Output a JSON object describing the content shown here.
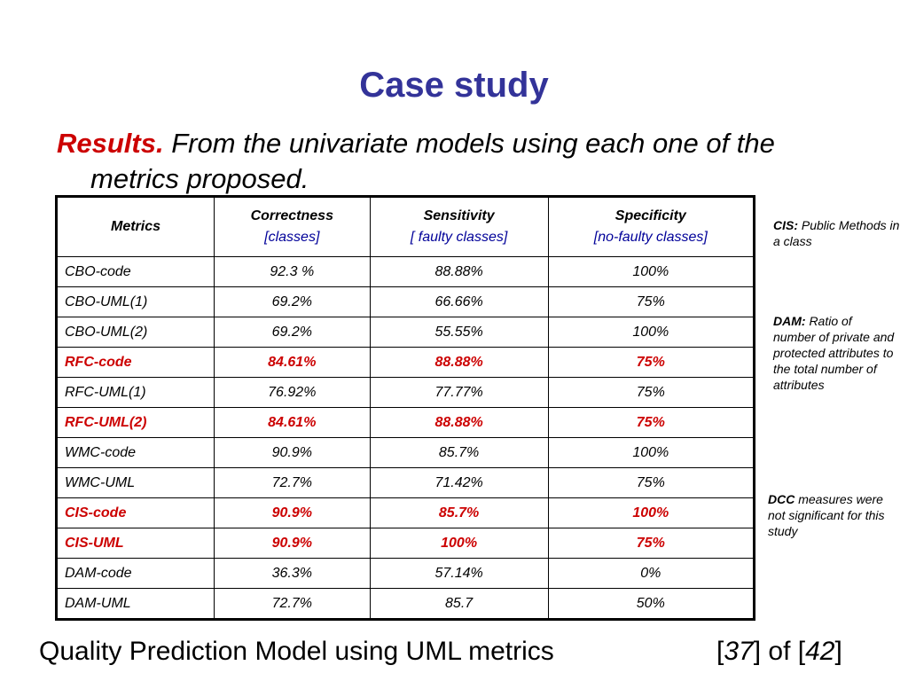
{
  "title": "Case study",
  "subtitle": {
    "lead": "Results.",
    "line1": "From the univariate models using each one of the",
    "line2": "metrics proposed."
  },
  "table": {
    "headers": [
      {
        "label": "Metrics",
        "sub": ""
      },
      {
        "label": "Correctness",
        "sub": "[classes]"
      },
      {
        "label": "Sensitivity",
        "sub": "[ faulty classes]"
      },
      {
        "label": "Specificity",
        "sub": "[no-faulty classes]"
      }
    ],
    "rows": [
      {
        "metric": "CBO-code",
        "correctness": "92.3 %",
        "sensitivity": "88.88%",
        "specificity": "100%",
        "highlight": false
      },
      {
        "metric": "CBO-UML(1)",
        "correctness": "69.2%",
        "sensitivity": "66.66%",
        "specificity": "75%",
        "highlight": false
      },
      {
        "metric": "CBO-UML(2)",
        "correctness": "69.2%",
        "sensitivity": "55.55%",
        "specificity": "100%",
        "highlight": false
      },
      {
        "metric": "RFC-code",
        "correctness": "84.61%",
        "sensitivity": "88.88%",
        "specificity": "75%",
        "highlight": true
      },
      {
        "metric": "RFC-UML(1)",
        "correctness": "76.92%",
        "sensitivity": "77.77%",
        "specificity": "75%",
        "highlight": false
      },
      {
        "metric": "RFC-UML(2)",
        "correctness": "84.61%",
        "sensitivity": "88.88%",
        "specificity": "75%",
        "highlight": true
      },
      {
        "metric": "WMC-code",
        "correctness": "90.9%",
        "sensitivity": "85.7%",
        "specificity": "100%",
        "highlight": false
      },
      {
        "metric": "WMC-UML",
        "correctness": "72.7%",
        "sensitivity": "71.42%",
        "specificity": "75%",
        "highlight": false
      },
      {
        "metric": "CIS-code",
        "correctness": "90.9%",
        "sensitivity": "85.7%",
        "specificity": "100%",
        "highlight": true
      },
      {
        "metric": "CIS-UML",
        "correctness": "90.9%",
        "sensitivity": "100%",
        "specificity": "75%",
        "highlight": true
      },
      {
        "metric": "DAM-code",
        "correctness": "36.3%",
        "sensitivity": "57.14%",
        "specificity": "0%",
        "highlight": false
      },
      {
        "metric": "DAM-UML",
        "correctness": "72.7%",
        "sensitivity": "85.7",
        "specificity": "50%",
        "highlight": false
      }
    ]
  },
  "notes": {
    "cis": {
      "term": "CIS:",
      "text": "Public Methods in a class"
    },
    "dam": {
      "term": "DAM:",
      "text": "Ratio of number of private and protected attributes to the total number of attributes"
    },
    "dcc": {
      "term": "DCC",
      "text": "measures were not significant for this study"
    }
  },
  "footer": {
    "text": "Quality Prediction Model using UML metrics",
    "page": "37",
    "of": "of",
    "total": "42"
  },
  "colors": {
    "title": "#333399",
    "highlight": "#cc0000"
  }
}
